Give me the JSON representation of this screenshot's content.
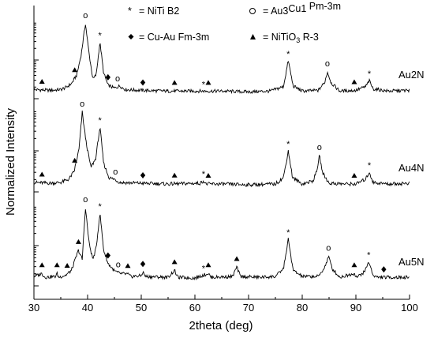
{
  "chart_data": {
    "type": "line",
    "xlabel": "2theta (deg)",
    "ylabel": "Normalized Intensity",
    "xlim": [
      30,
      100
    ],
    "x_ticks": [
      "30",
      "40",
      "50",
      "60",
      "70",
      "80",
      "90",
      "100"
    ],
    "y_ticks_labeled": false,
    "legend": [
      {
        "symbol": "*",
        "label": "= NiTi B2"
      },
      {
        "symbol": "o",
        "label_parts": [
          "Au",
          "3",
          "Cu",
          "1",
          " Pm-3m"
        ]
      },
      {
        "symbol": "◆",
        "label": "= Cu-Au Fm-3m"
      },
      {
        "symbol": "▲",
        "label_parts": [
          "= NiTiO",
          "3",
          " R-3"
        ]
      }
    ],
    "series": [
      {
        "name": "Au2N",
        "points": [
          [
            30,
            0.08
          ],
          [
            33,
            0.07
          ],
          [
            35,
            0.08
          ],
          [
            36,
            0.11
          ],
          [
            37,
            0.16
          ],
          [
            38,
            0.28
          ],
          [
            38.8,
            0.55
          ],
          [
            39.6,
            0.97
          ],
          [
            40.3,
            0.55
          ],
          [
            41,
            0.22
          ],
          [
            41.6,
            0.28
          ],
          [
            42.3,
            0.72
          ],
          [
            43,
            0.3
          ],
          [
            43.8,
            0.14
          ],
          [
            45,
            0.1
          ],
          [
            46,
            0.13
          ],
          [
            47,
            0.08
          ],
          [
            50,
            0.07
          ],
          [
            55,
            0.06
          ],
          [
            60,
            0.06
          ],
          [
            65,
            0.06
          ],
          [
            70,
            0.05
          ],
          [
            74,
            0.06
          ],
          [
            76.5,
            0.12
          ],
          [
            77.4,
            0.47
          ],
          [
            78.3,
            0.13
          ],
          [
            80,
            0.06
          ],
          [
            83,
            0.07
          ],
          [
            84.2,
            0.18
          ],
          [
            84.7,
            0.32
          ],
          [
            85.4,
            0.17
          ],
          [
            87,
            0.06
          ],
          [
            90,
            0.07
          ],
          [
            91.8,
            0.12
          ],
          [
            92.5,
            0.2
          ],
          [
            93.2,
            0.09
          ],
          [
            96,
            0.06
          ],
          [
            100,
            0.07
          ]
        ],
        "markers": [
          {
            "x": 31.5,
            "symbol": "▲"
          },
          {
            "x": 37.6,
            "symbol": "▲"
          },
          {
            "x": 39.6,
            "symbol": "o"
          },
          {
            "x": 42.3,
            "symbol": "*"
          },
          {
            "x": 43.8,
            "symbol": "◆"
          },
          {
            "x": 45.6,
            "symbol": "o"
          },
          {
            "x": 50.3,
            "symbol": "◆"
          },
          {
            "x": 56.2,
            "symbol": "▲"
          },
          {
            "x": 61.6,
            "symbol": "*"
          },
          {
            "x": 62.5,
            "symbol": "▲"
          },
          {
            "x": 77.4,
            "symbol": "*"
          },
          {
            "x": 84.7,
            "symbol": "o"
          },
          {
            "x": 89.7,
            "symbol": "▲"
          },
          {
            "x": 92.5,
            "symbol": "*"
          }
        ]
      },
      {
        "name": "Au4N",
        "points": [
          [
            30,
            0.08
          ],
          [
            33,
            0.07
          ],
          [
            35,
            0.08
          ],
          [
            36.5,
            0.12
          ],
          [
            37.5,
            0.22
          ],
          [
            38.4,
            0.5
          ],
          [
            39,
            0.97
          ],
          [
            39.7,
            0.6
          ],
          [
            40.6,
            0.27
          ],
          [
            41.5,
            0.38
          ],
          [
            42.3,
            0.78
          ],
          [
            43,
            0.32
          ],
          [
            44,
            0.14
          ],
          [
            45,
            0.12
          ],
          [
            46,
            0.08
          ],
          [
            50,
            0.07
          ],
          [
            55,
            0.06
          ],
          [
            61,
            0.07
          ],
          [
            61.6,
            0.1
          ],
          [
            62,
            0.06
          ],
          [
            65,
            0.06
          ],
          [
            70,
            0.05
          ],
          [
            75,
            0.06
          ],
          [
            76.5,
            0.14
          ],
          [
            77.4,
            0.48
          ],
          [
            78.2,
            0.14
          ],
          [
            80,
            0.06
          ],
          [
            82,
            0.1
          ],
          [
            82.7,
            0.22
          ],
          [
            83.2,
            0.42
          ],
          [
            83.8,
            0.2
          ],
          [
            85,
            0.07
          ],
          [
            88,
            0.06
          ],
          [
            90,
            0.06
          ],
          [
            91.8,
            0.12
          ],
          [
            92.5,
            0.21
          ],
          [
            93.2,
            0.08
          ],
          [
            96,
            0.06
          ],
          [
            100,
            0.07
          ]
        ],
        "markers": [
          {
            "x": 31.5,
            "symbol": "▲"
          },
          {
            "x": 37.6,
            "symbol": "▲"
          },
          {
            "x": 39,
            "symbol": "o"
          },
          {
            "x": 42.3,
            "symbol": "*"
          },
          {
            "x": 45.2,
            "symbol": "o"
          },
          {
            "x": 50.3,
            "symbol": "◆"
          },
          {
            "x": 56.2,
            "symbol": "▲"
          },
          {
            "x": 61.6,
            "symbol": "*"
          },
          {
            "x": 62.5,
            "symbol": "▲"
          },
          {
            "x": 77.4,
            "symbol": "*"
          },
          {
            "x": 83.2,
            "symbol": "o"
          },
          {
            "x": 89.7,
            "symbol": "▲"
          },
          {
            "x": 92.5,
            "symbol": "*"
          }
        ]
      },
      {
        "name": "Au5N",
        "points": [
          [
            30,
            0.08
          ],
          [
            31.5,
            0.12
          ],
          [
            32,
            0.07
          ],
          [
            34,
            0.08
          ],
          [
            34.3,
            0.12
          ],
          [
            34.6,
            0.07
          ],
          [
            36,
            0.1
          ],
          [
            37,
            0.16
          ],
          [
            38.3,
            0.42
          ],
          [
            39,
            0.3
          ],
          [
            39.6,
            0.97
          ],
          [
            40.3,
            0.5
          ],
          [
            41,
            0.3
          ],
          [
            41.6,
            0.45
          ],
          [
            42.3,
            0.9
          ],
          [
            43,
            0.42
          ],
          [
            43.8,
            0.25
          ],
          [
            45,
            0.15
          ],
          [
            46,
            0.12
          ],
          [
            47.5,
            0.11
          ],
          [
            48,
            0.08
          ],
          [
            50,
            0.09
          ],
          [
            50.3,
            0.14
          ],
          [
            50.8,
            0.08
          ],
          [
            55,
            0.07
          ],
          [
            56.2,
            0.16
          ],
          [
            56.8,
            0.07
          ],
          [
            60,
            0.06
          ],
          [
            62.5,
            0.12
          ],
          [
            63,
            0.07
          ],
          [
            67,
            0.08
          ],
          [
            67.8,
            0.2
          ],
          [
            68.5,
            0.08
          ],
          [
            72,
            0.07
          ],
          [
            75,
            0.08
          ],
          [
            76.5,
            0.18
          ],
          [
            77.4,
            0.56
          ],
          [
            78.3,
            0.16
          ],
          [
            80,
            0.08
          ],
          [
            83,
            0.08
          ],
          [
            84.2,
            0.2
          ],
          [
            84.9,
            0.34
          ],
          [
            85.6,
            0.18
          ],
          [
            87,
            0.07
          ],
          [
            89.7,
            0.12
          ],
          [
            90.2,
            0.07
          ],
          [
            91.6,
            0.14
          ],
          [
            92.4,
            0.27
          ],
          [
            93.2,
            0.1
          ],
          [
            94,
            0.07
          ],
          [
            100,
            0.07
          ]
        ],
        "markers": [
          {
            "x": 31.5,
            "symbol": "▲"
          },
          {
            "x": 34.3,
            "symbol": "▲"
          },
          {
            "x": 36.2,
            "symbol": "▲"
          },
          {
            "x": 38.3,
            "symbol": "▲"
          },
          {
            "x": 39.6,
            "symbol": "o"
          },
          {
            "x": 42.3,
            "symbol": "*"
          },
          {
            "x": 43.8,
            "symbol": "◆"
          },
          {
            "x": 45.7,
            "symbol": "o"
          },
          {
            "x": 47.5,
            "symbol": "▲"
          },
          {
            "x": 50.3,
            "symbol": "◆"
          },
          {
            "x": 56.2,
            "symbol": "▲"
          },
          {
            "x": 61.6,
            "symbol": "*"
          },
          {
            "x": 62.5,
            "symbol": "▲"
          },
          {
            "x": 67.8,
            "symbol": "▲"
          },
          {
            "x": 77.4,
            "symbol": "*"
          },
          {
            "x": 84.9,
            "symbol": "o"
          },
          {
            "x": 89.7,
            "symbol": "▲"
          },
          {
            "x": 92.4,
            "symbol": "*"
          },
          {
            "x": 95.2,
            "symbol": "◆"
          }
        ]
      }
    ]
  }
}
